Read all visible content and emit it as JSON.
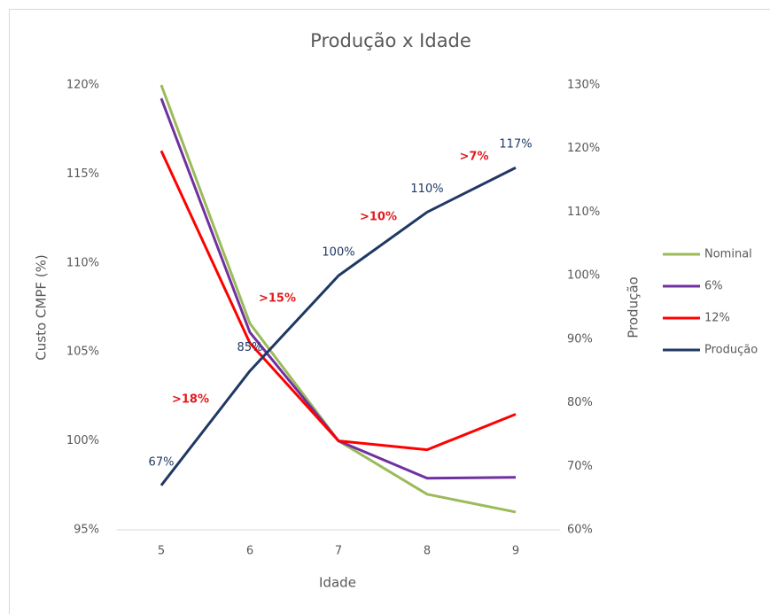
{
  "chart_data": {
    "type": "line",
    "title": "Produção x Idade",
    "x_label": "Idade",
    "y_label": "Custo CMPF (%)",
    "y2_label": "Produção",
    "categories": [
      "5",
      "6",
      "7",
      "8",
      "9"
    ],
    "series": [
      {
        "name": "Nominal",
        "color": "#9bbb59",
        "values": [
          120,
          106.6,
          100,
          97.0,
          96.0
        ]
      },
      {
        "name": "6%",
        "color": "#7030a0",
        "values": [
          119.25,
          106.1,
          100,
          97.9,
          97.95
        ]
      },
      {
        "name": "12%",
        "color": "#ff0000",
        "values": [
          116.3,
          105.5,
          100,
          99.5,
          101.5
        ]
      },
      {
        "name": "Produção",
        "color": "#1f3864",
        "axis": "y2",
        "values": [
          67,
          85,
          100,
          110,
          117
        ],
        "value_labels": [
          "67%",
          "85%",
          "100%",
          "110%",
          "117%"
        ]
      }
    ],
    "annotations": [
      ">18%",
      ">15%",
      ">10%",
      ">7%"
    ],
    "ylim": [
      95,
      120
    ],
    "yticks": [
      {
        "value": 95,
        "label": "95%"
      },
      {
        "value": 100,
        "label": "100%"
      },
      {
        "value": 105,
        "label": "105%"
      },
      {
        "value": 110,
        "label": "110%"
      },
      {
        "value": 115,
        "label": "115%"
      },
      {
        "value": 120,
        "label": "120%"
      }
    ],
    "y2lim": [
      60,
      130
    ],
    "y2ticks": [
      {
        "value": 60,
        "label": "60%"
      },
      {
        "value": 70,
        "label": "70%"
      },
      {
        "value": 80,
        "label": "80%"
      },
      {
        "value": 90,
        "label": "90%"
      },
      {
        "value": 100,
        "label": "100%"
      },
      {
        "value": 110,
        "label": "110%"
      },
      {
        "value": 120,
        "label": "120%"
      },
      {
        "value": 130,
        "label": "130%"
      }
    ],
    "grid": false,
    "legend": "right"
  }
}
